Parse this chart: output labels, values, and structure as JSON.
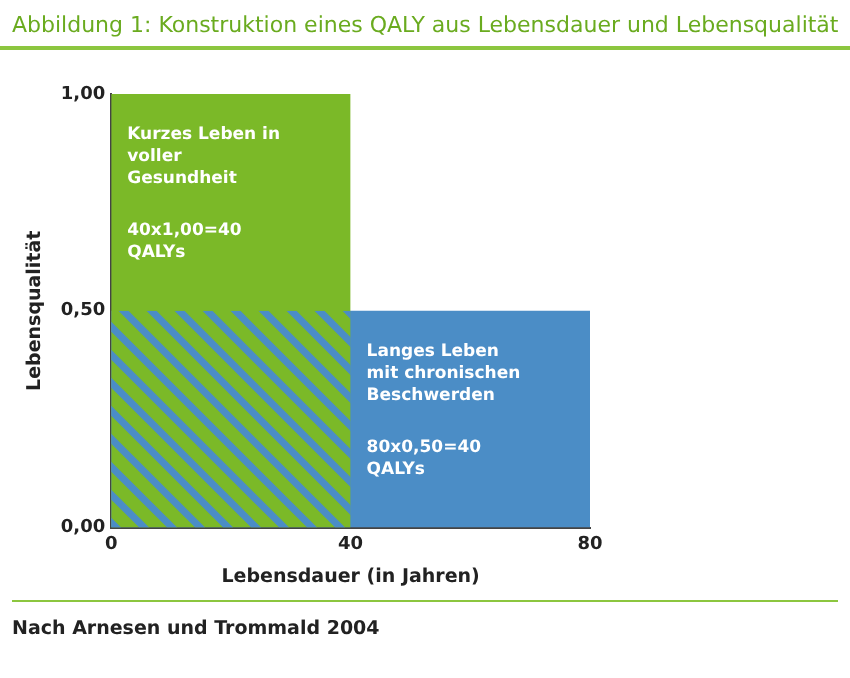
{
  "chart_data": {
    "type": "area",
    "title": "Abbildung 1: Konstruktion eines QALY aus Lebensdauer und Lebensqualität",
    "xlabel": "Lebensdauer (in Jahren)",
    "ylabel": "Lebensqualität",
    "series": [
      {
        "x": [
          0,
          80
        ],
        "values": [
          0.5,
          0.5
        ],
        "color": "#4b8dc6"
      },
      {
        "x": [
          0,
          40
        ],
        "values": [
          1,
          1
        ],
        "color": "#7bb928"
      }
    ],
    "xlim": [
      0,
      80
    ],
    "xticks": [
      0,
      40,
      80
    ],
    "ylim": [
      0,
      1
    ],
    "yticks": [
      {
        "value": 0,
        "label": "0,00"
      },
      {
        "value": 0.5,
        "label": "0,50"
      },
      {
        "value": 1,
        "label": "1,00"
      }
    ],
    "grid": false,
    "legend": false,
    "annotations": [
      "Kurzes Leben in voller Gesundheit",
      "40x1,00=40 QALYs",
      "Langes Leben mit chronischen Beschwerden",
      "80x0,50=40 QALYs",
      "Nach Arnesen und Trommald 2004"
    ]
  }
}
